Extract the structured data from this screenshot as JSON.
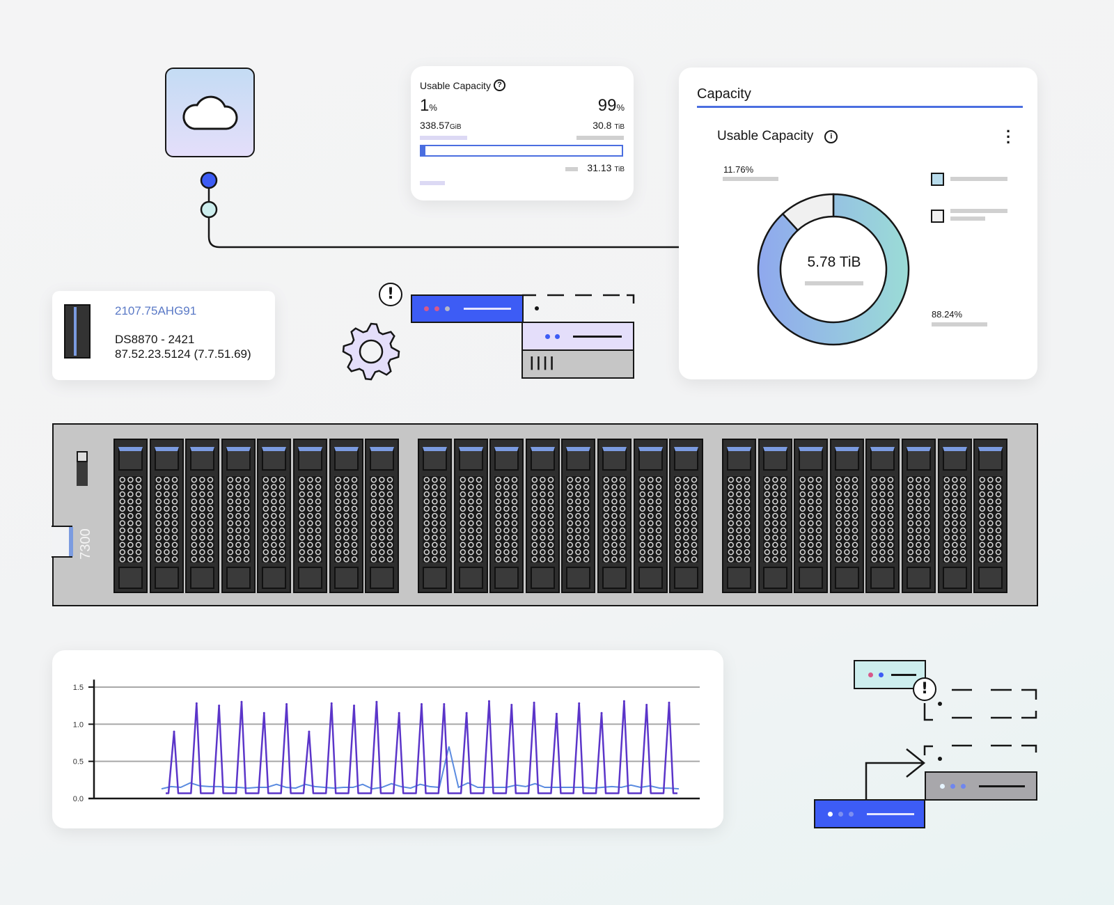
{
  "usable_card": {
    "title": "Usable Capacity",
    "help_icon": "question-circle-icon",
    "left_value": "1",
    "left_unit": "%",
    "left_amount": "338.57",
    "left_amount_unit": "GiB",
    "right_value": "99",
    "right_unit": "%",
    "right_amount": "30.8",
    "right_amount_unit": "TiB",
    "total_amount": "31.13",
    "total_unit": "TiB",
    "used_fraction": 0.01,
    "bar_color": "#4a6ee0"
  },
  "capacity_card": {
    "tab": "Capacity",
    "section_title": "Usable Capacity",
    "info_icon": "info-circle-icon",
    "menu_icon": "overflow-menu-vertical-icon",
    "center_value": "5.78 TiB",
    "chart_data": {
      "type": "pie",
      "values": [
        88.24,
        11.76
      ],
      "labels": [
        "88.24%",
        "11.76%"
      ],
      "colors": [
        "#8fa8ee",
        "#f0f0f0"
      ],
      "gradient": [
        "#8fa8ee",
        "#9bdcd6"
      ]
    }
  },
  "device_card": {
    "id": "2107.75AHG91",
    "model": "DS8870 - 2421",
    "version": "87.52.23.5124 (7.7.51.69)"
  },
  "rack": {
    "label": "7300",
    "groups": 3,
    "bays_per_group": 8
  },
  "line_chart": {
    "chart_data": {
      "type": "line",
      "ylim": [
        0,
        1.5
      ],
      "yticks": [
        "0.0",
        "0.5",
        "1.0",
        "1.5"
      ],
      "grid": true,
      "series": [
        {
          "color": "#5b35c9",
          "baseline": 0.07,
          "peaks": [
            0.9,
            1.28,
            1.25,
            1.3,
            1.15,
            1.27,
            0.9,
            1.28,
            1.25,
            1.3,
            1.15,
            1.27,
            1.27,
            1.15,
            1.31,
            1.26,
            1.29,
            1.14,
            1.28,
            1.15,
            1.31,
            1.26,
            1.29
          ]
        },
        {
          "color": "#5a8be0",
          "values": [
            0.13,
            0.16,
            0.15,
            0.21,
            0.17,
            0.16,
            0.16,
            0.15,
            0.15,
            0.14,
            0.15,
            0.15,
            0.19,
            0.15,
            0.14,
            0.19,
            0.16,
            0.15,
            0.14,
            0.15,
            0.15,
            0.19,
            0.13,
            0.15,
            0.2,
            0.16,
            0.14,
            0.19,
            0.16,
            0.15,
            0.7,
            0.15,
            0.21,
            0.15,
            0.15,
            0.15,
            0.15,
            0.18,
            0.16,
            0.2,
            0.15,
            0.15,
            0.15,
            0.15,
            0.15,
            0.14,
            0.15,
            0.16,
            0.15,
            0.18,
            0.15,
            0.17,
            0.14,
            0.14,
            0.13
          ]
        }
      ]
    }
  },
  "icons": {
    "cloud": "cloud-icon",
    "gear": "gear-icon",
    "alert": "warning-icon"
  },
  "colors": {
    "blue": "#3d5cf5",
    "lavender": "#e4defa",
    "teal": "#cdeeee",
    "grey": "#c6c6c6"
  }
}
